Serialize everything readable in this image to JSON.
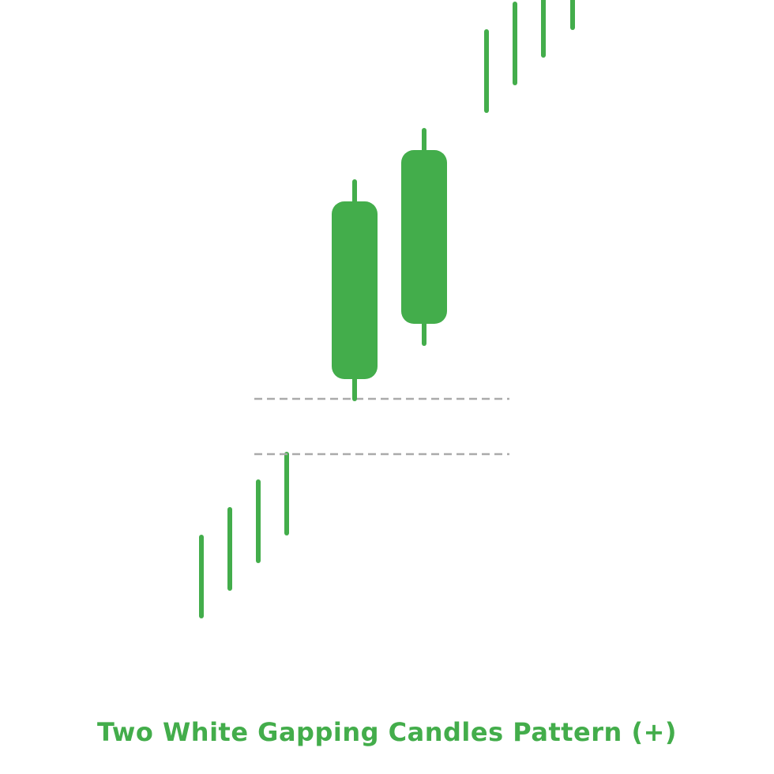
{
  "colors": {
    "candle": "#43ad4b",
    "gap_line": "#aaaaaa",
    "background": "#ffffff"
  },
  "chart_data": {
    "type": "candlestick",
    "title": "Two White Gapping Candles Pattern (+)",
    "xlabel": "",
    "ylabel": "",
    "axes_visible": false,
    "grid": false,
    "ylim": [
      0,
      100
    ],
    "trend_lines": [
      {
        "name": "prior",
        "low": 16,
        "high": 26
      },
      {
        "name": "prior",
        "low": 19.5,
        "high": 29.5
      },
      {
        "name": "prior",
        "low": 23,
        "high": 33
      },
      {
        "name": "prior",
        "low": 26.5,
        "high": 36.5
      },
      {
        "name": "after",
        "low": 80,
        "high": 90
      },
      {
        "name": "after",
        "low": 83.5,
        "high": 93.5
      },
      {
        "name": "after",
        "low": 87,
        "high": 97
      },
      {
        "name": "after",
        "low": 90.5,
        "high": 100.5
      }
    ],
    "candles": [
      {
        "open": 46,
        "close": 68.5,
        "high": 71,
        "low": 43.5,
        "direction": "up"
      },
      {
        "open": 53,
        "close": 75,
        "high": 77.5,
        "low": 50.5,
        "direction": "up"
      }
    ],
    "gap": {
      "lower": 36.5,
      "upper": 43.5
    }
  }
}
